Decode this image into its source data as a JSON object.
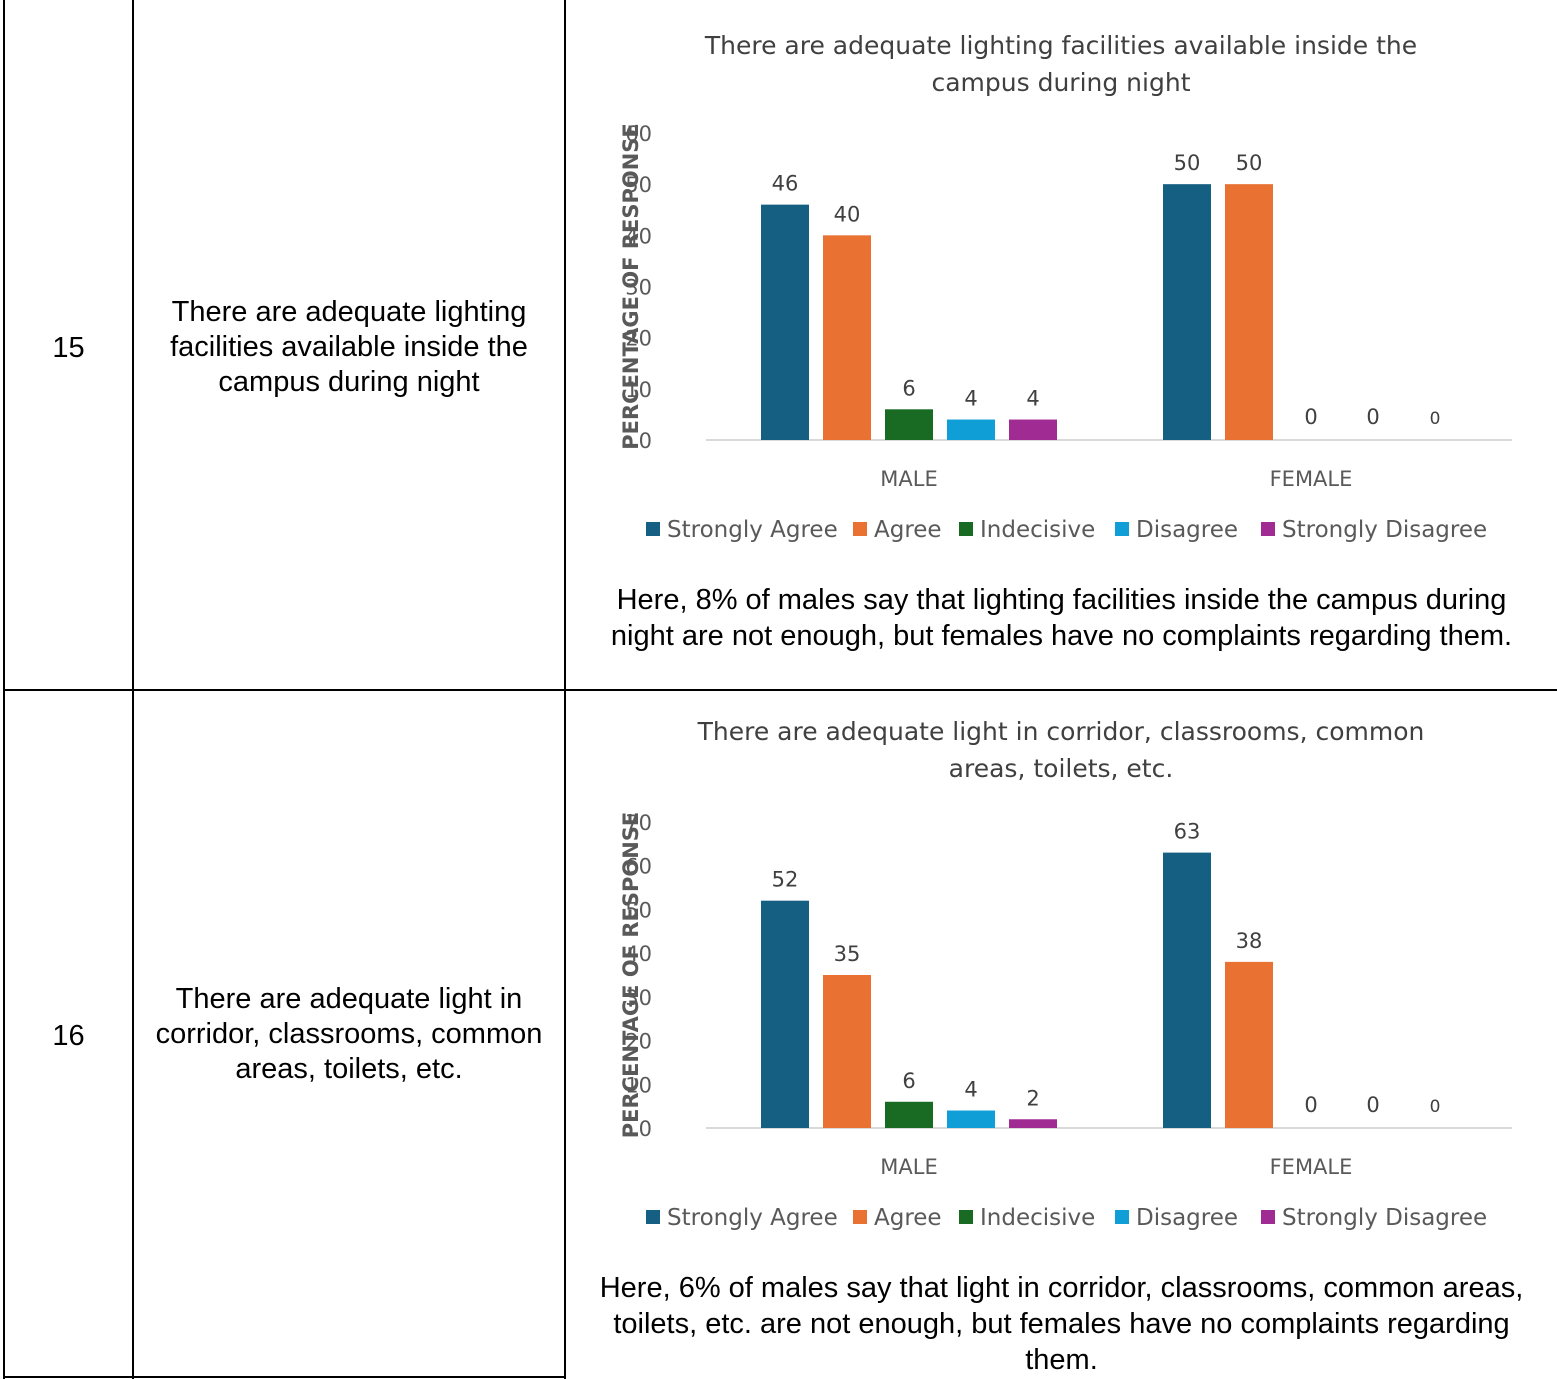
{
  "rows": [
    {
      "number": "15",
      "statement": "There are adequate lighting facilities available inside the campus during night",
      "note": "Here, 8% of males say that lighting facilities inside the campus during night are not enough, but females have no complaints regarding them."
    },
    {
      "number": "16",
      "statement": "There are adequate light in corridor, classrooms, common areas, toilets, etc.",
      "note": "Here, 6% of males say that light in corridor, classrooms, common areas, toilets, etc. are not enough, but females have no complaints regarding them."
    }
  ],
  "chart_data": [
    {
      "type": "bar",
      "title_lines": [
        "There are adequate lighting facilities available inside the",
        "campus during night"
      ],
      "ylabel": "PERCENTAGE OF RESPONSE",
      "xlabel": "",
      "categories": [
        "MALE",
        "FEMALE"
      ],
      "ylim": [
        0,
        60
      ],
      "yticks": [
        "0",
        "10",
        "20",
        "30",
        "40",
        "50",
        "60"
      ],
      "series": [
        {
          "name": "Strongly Agree",
          "color": "#156082",
          "values": [
            46,
            50
          ]
        },
        {
          "name": "Agree",
          "color": "#E97132",
          "values": [
            40,
            50
          ]
        },
        {
          "name": "Indecisive",
          "color": "#196B24",
          "values": [
            6,
            0
          ]
        },
        {
          "name": "Disagree",
          "color": "#0F9ED5",
          "values": [
            4,
            0
          ]
        },
        {
          "name": "Strongly Disagree",
          "color": "#A02B93",
          "values": [
            4,
            0
          ]
        }
      ],
      "grid": false,
      "legend_position": "bottom"
    },
    {
      "type": "bar",
      "title_lines": [
        "There are adequate light in corridor, classrooms, common",
        "areas, toilets, etc."
      ],
      "ylabel": "PERCENTAGE OF RESPONSE",
      "xlabel": "",
      "categories": [
        "MALE",
        "FEMALE"
      ],
      "ylim": [
        0,
        70
      ],
      "yticks": [
        "0",
        "10",
        "20",
        "30",
        "40",
        "50",
        "60",
        "70"
      ],
      "series": [
        {
          "name": "Strongly Agree",
          "color": "#156082",
          "values": [
            52,
            63
          ]
        },
        {
          "name": "Agree",
          "color": "#E97132",
          "values": [
            35,
            38
          ]
        },
        {
          "name": "Indecisive",
          "color": "#196B24",
          "values": [
            6,
            0
          ]
        },
        {
          "name": "Disagree",
          "color": "#0F9ED5",
          "values": [
            4,
            0
          ]
        },
        {
          "name": "Strongly Disagree",
          "color": "#A02B93",
          "values": [
            2,
            0
          ]
        }
      ],
      "grid": false,
      "legend_position": "bottom"
    }
  ]
}
